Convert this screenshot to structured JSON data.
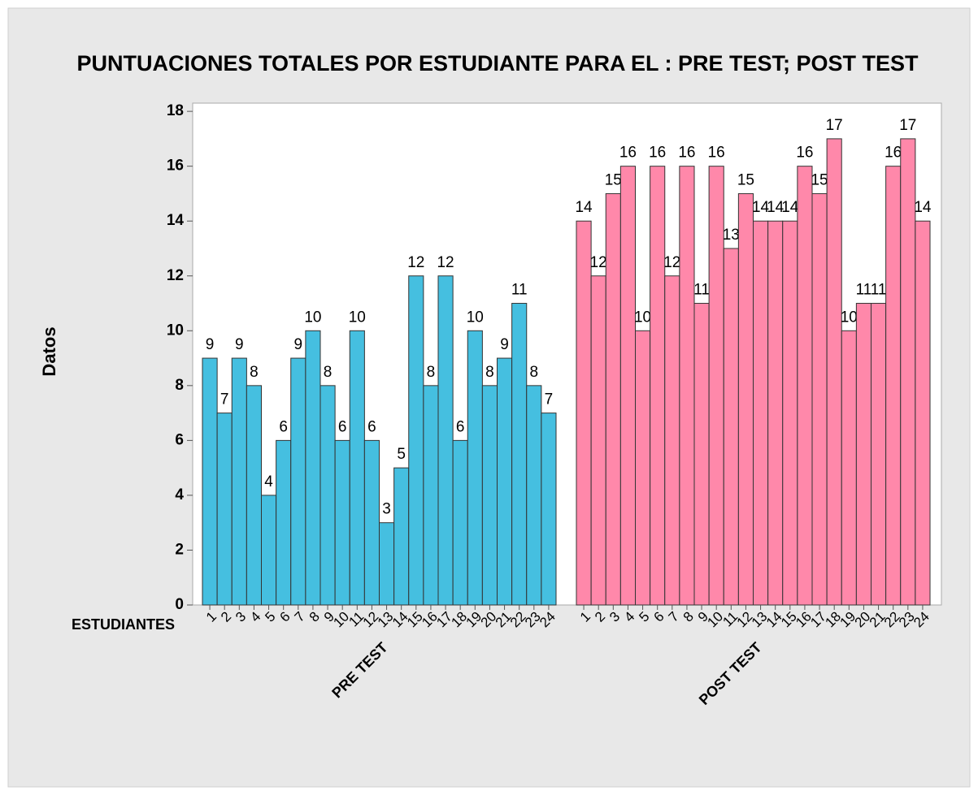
{
  "chart_data": {
    "type": "bar",
    "title": "PUNTUACIONES TOTALES POR ESTUDIANTE PARA EL : PRE TEST; POST TEST",
    "ylabel": "Datos",
    "xlabel": "ESTUDIANTES",
    "categories": [
      "1",
      "2",
      "3",
      "4",
      "5",
      "6",
      "7",
      "8",
      "9",
      "10",
      "11",
      "12",
      "13",
      "14",
      "15",
      "16",
      "17",
      "18",
      "19",
      "20",
      "21",
      "22",
      "23",
      "24"
    ],
    "series": [
      {
        "name": "PRE TEST",
        "color": "#45bfe0",
        "values": [
          9,
          7,
          9,
          8,
          4,
          6,
          9,
          10,
          8,
          6,
          10,
          6,
          3,
          5,
          12,
          8,
          12,
          6,
          10,
          8,
          9,
          11,
          8,
          7
        ]
      },
      {
        "name": "POST TEST",
        "color": "#ff88aa",
        "values": [
          14,
          12,
          15,
          16,
          10,
          16,
          12,
          16,
          11,
          16,
          13,
          15,
          14,
          14,
          14,
          16,
          15,
          17,
          10,
          11,
          11,
          16,
          17,
          14
        ]
      }
    ],
    "ylim": [
      0,
      18.3
    ],
    "yticks": [
      0,
      2,
      4,
      6,
      8,
      10,
      12,
      14,
      16,
      18
    ]
  }
}
